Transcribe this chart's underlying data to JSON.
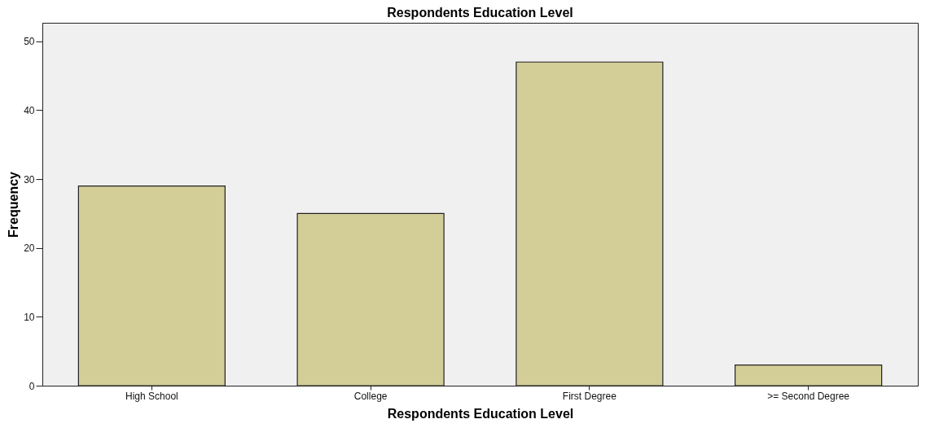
{
  "chart_data": {
    "type": "bar",
    "title": "Respondents Education Level",
    "xlabel": "Respondents Education Level",
    "ylabel": "Frequency",
    "categories": [
      "High School",
      "College",
      "First Degree",
      ">= Second Degree"
    ],
    "values": [
      29,
      25,
      47,
      3
    ],
    "color": "#d3cd98",
    "ylim": [
      0,
      52.7
    ],
    "yticks": [
      0,
      10,
      20,
      30,
      40,
      50
    ],
    "grid": false
  }
}
